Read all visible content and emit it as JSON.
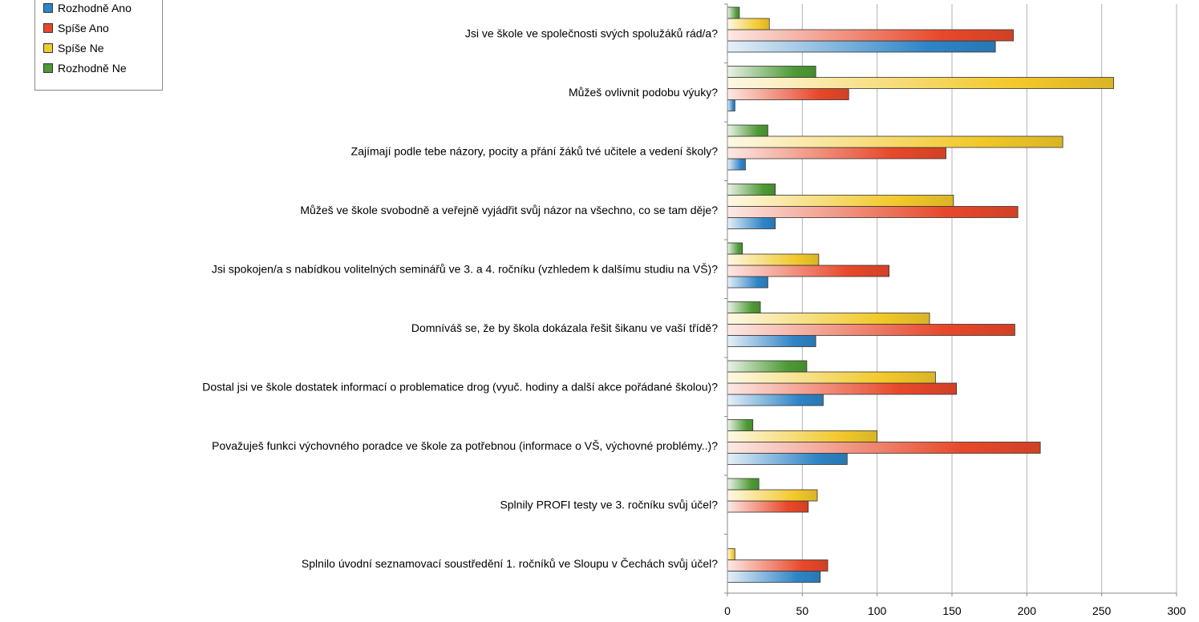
{
  "chart_data": {
    "type": "bar",
    "orientation": "horizontal",
    "title": "",
    "xlabel": "",
    "ylabel": "",
    "xlim": [
      0,
      300
    ],
    "x_ticks": [
      0,
      50,
      100,
      150,
      200,
      250,
      300
    ],
    "grid": "vertical",
    "legend_position": "top-left",
    "categories": [
      "Jsi ve škole ve společnosti svých spolužáků rád/a?",
      "Můžeš ovlivnit podobu výuky?",
      "Zajímají podle tebe názory, pocity a přání žáků tvé učitele a vedení školy?",
      "Můžeš ve škole svobodně a veřejně vyjádřit svůj názor na všechno, co se tam děje?",
      "Jsi spokojen/a s nabídkou volitelných seminářů ve 3. a 4. ročníku (vzhledem k dalšímu studiu na VŠ)?",
      "Domníváš se, že by škola dokázala řešit šikanu ve vaší třídě?",
      "Dostal jsi ve škole dostatek informací o problematice drog (vyuč. hodiny a další akce pořádané školou)?",
      "Považuješ funkci výchovného poradce ve škole za potřebnou (informace o VŠ, výchovné problémy..)?",
      "Splnily PROFI testy ve 3. ročníku svůj účel?",
      "Splnilo úvodní seznamovací soustředění 1. ročníků ve Sloupu v Čechách svůj účel?"
    ],
    "series": [
      {
        "name": "Rozhodně Ano",
        "color": "#2e84c6",
        "values": [
          179,
          5,
          12,
          32,
          27,
          59,
          64,
          80,
          0,
          62
        ]
      },
      {
        "name": "Spíše Ano",
        "color": "#e8482a",
        "values": [
          191,
          81,
          146,
          194,
          108,
          192,
          153,
          209,
          54,
          67
        ]
      },
      {
        "name": "Spíše Ne",
        "color": "#f2c82a",
        "values": [
          28,
          258,
          224,
          151,
          61,
          135,
          139,
          100,
          60,
          5
        ]
      },
      {
        "name": "Rozhodně Ne",
        "color": "#4e9a35",
        "values": [
          8,
          59,
          27,
          32,
          10,
          22,
          53,
          17,
          21,
          0
        ]
      }
    ]
  }
}
